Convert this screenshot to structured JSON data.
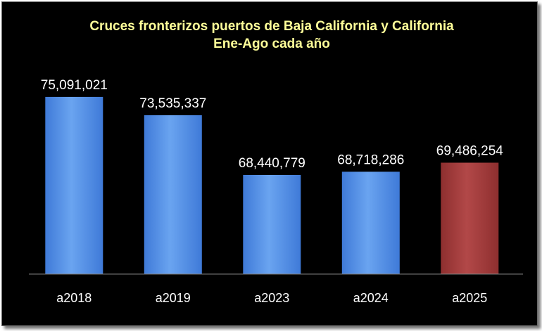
{
  "chart_data": {
    "type": "bar",
    "title_lines": [
      "Cruces fronterizos puertos de Baja California y California",
      "Ene-Ago cada año"
    ],
    "categories": [
      "a2018",
      "a2019",
      "a2023",
      "a2024",
      "a2025"
    ],
    "values": [
      75091021,
      73535337,
      68440779,
      68718286,
      69486254
    ],
    "data_labels": [
      "75,091,021",
      "73,535,337",
      "68,440,779",
      "68,718,286",
      "69,486,254"
    ],
    "ylim": [
      60000000,
      77000000
    ],
    "grid": false,
    "legend": "none",
    "colors": {
      "background": "#000000",
      "title": "#ffff99",
      "text": "#ffffff",
      "axis": "#808080",
      "bar": "#5b95e6",
      "highlight_bar": "#a33b3b"
    },
    "highlight_index": 4
  }
}
